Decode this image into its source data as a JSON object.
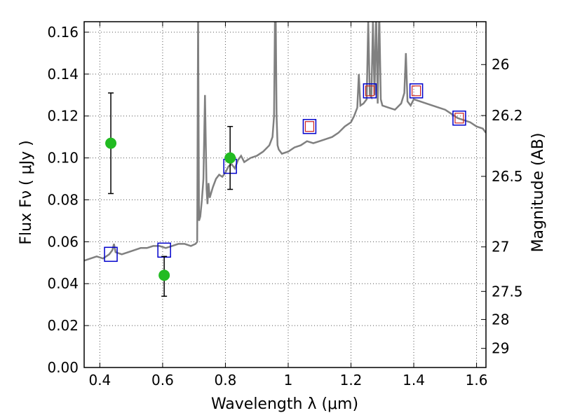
{
  "chart_data": {
    "type": "line",
    "xlabel": "Wavelength  λ (μm)",
    "ylabel": "Flux  Fν  ( μJy )",
    "ylabel_right": "Magnitude (AB)",
    "xlim": [
      0.35,
      1.63
    ],
    "ylim": [
      0.0,
      0.165
    ],
    "grid": true,
    "x_ticks": [
      {
        "v": 0.4,
        "label": "0.4"
      },
      {
        "v": 0.6,
        "label": "0.6"
      },
      {
        "v": 0.8,
        "label": "0.8"
      },
      {
        "v": 1.0,
        "label": "1"
      },
      {
        "v": 1.2,
        "label": "1.2"
      },
      {
        "v": 1.4,
        "label": "1.4"
      },
      {
        "v": 1.6,
        "label": "1.6"
      }
    ],
    "y_ticks": [
      {
        "v": 0.0,
        "label": "0.00"
      },
      {
        "v": 0.02,
        "label": "0.02"
      },
      {
        "v": 0.04,
        "label": "0.04"
      },
      {
        "v": 0.06,
        "label": "0.06"
      },
      {
        "v": 0.08,
        "label": "0.08"
      },
      {
        "v": 0.1,
        "label": "0.10"
      },
      {
        "v": 0.12,
        "label": "0.12"
      },
      {
        "v": 0.14,
        "label": "0.14"
      },
      {
        "v": 0.16,
        "label": "0.16"
      }
    ],
    "right_ticks": [
      {
        "mag": 26,
        "label": "26"
      },
      {
        "mag": 26.2,
        "label": "26.2"
      },
      {
        "mag": 26.5,
        "label": "26.5"
      },
      {
        "mag": 27,
        "label": "27"
      },
      {
        "mag": 27.5,
        "label": "27.5"
      },
      {
        "mag": 28,
        "label": "28"
      },
      {
        "mag": 29,
        "label": "29"
      }
    ],
    "colors": {
      "spectrum": "#808080",
      "model_box": "#0000cc",
      "model_box_inner": "#cc2222",
      "observed": "#22bb22",
      "errorbar": "#000000"
    },
    "spectrum": {
      "x": [
        0.35,
        0.37,
        0.39,
        0.41,
        0.43,
        0.44,
        0.445,
        0.45,
        0.47,
        0.49,
        0.51,
        0.53,
        0.55,
        0.57,
        0.59,
        0.61,
        0.63,
        0.65,
        0.67,
        0.69,
        0.705,
        0.71,
        0.713,
        0.716,
        0.72,
        0.725,
        0.73,
        0.735,
        0.74,
        0.743,
        0.746,
        0.75,
        0.76,
        0.77,
        0.78,
        0.79,
        0.8,
        0.81,
        0.82,
        0.83,
        0.84,
        0.85,
        0.86,
        0.87,
        0.88,
        0.9,
        0.92,
        0.94,
        0.95,
        0.955,
        0.958,
        0.96,
        0.963,
        0.966,
        0.97,
        0.98,
        1.0,
        1.02,
        1.04,
        1.06,
        1.08,
        1.1,
        1.12,
        1.14,
        1.16,
        1.18,
        1.2,
        1.21,
        1.22,
        1.225,
        1.23,
        1.24,
        1.25,
        1.255,
        1.26,
        1.265,
        1.27,
        1.275,
        1.28,
        1.285,
        1.29,
        1.295,
        1.3,
        1.32,
        1.34,
        1.36,
        1.37,
        1.375,
        1.38,
        1.39,
        1.4,
        1.42,
        1.44,
        1.46,
        1.48,
        1.5,
        1.52,
        1.54,
        1.56,
        1.58,
        1.6,
        1.62,
        1.63
      ],
      "y": [
        0.051,
        0.052,
        0.053,
        0.052,
        0.054,
        0.056,
        0.059,
        0.055,
        0.054,
        0.055,
        0.056,
        0.057,
        0.057,
        0.058,
        0.058,
        0.057,
        0.058,
        0.059,
        0.059,
        0.058,
        0.059,
        0.06,
        0.17,
        0.07,
        0.072,
        0.08,
        0.09,
        0.13,
        0.085,
        0.078,
        0.088,
        0.081,
        0.086,
        0.09,
        0.092,
        0.091,
        0.093,
        0.096,
        0.097,
        0.095,
        0.099,
        0.101,
        0.098,
        0.099,
        0.1,
        0.101,
        0.103,
        0.106,
        0.11,
        0.12,
        0.17,
        0.17,
        0.12,
        0.106,
        0.104,
        0.102,
        0.103,
        0.105,
        0.106,
        0.108,
        0.107,
        0.108,
        0.109,
        0.11,
        0.112,
        0.115,
        0.117,
        0.12,
        0.124,
        0.14,
        0.125,
        0.126,
        0.128,
        0.165,
        0.13,
        0.129,
        0.165,
        0.13,
        0.17,
        0.126,
        0.17,
        0.128,
        0.125,
        0.124,
        0.123,
        0.126,
        0.131,
        0.15,
        0.127,
        0.125,
        0.128,
        0.127,
        0.126,
        0.125,
        0.124,
        0.123,
        0.121,
        0.119,
        0.118,
        0.117,
        0.115,
        0.114,
        0.112
      ]
    },
    "model_points": {
      "x": [
        0.435,
        0.605,
        0.815,
        1.068,
        1.26,
        1.408,
        1.545
      ],
      "y": [
        0.054,
        0.056,
        0.096,
        0.115,
        0.132,
        0.132,
        0.119
      ],
      "inner": [
        false,
        false,
        false,
        true,
        true,
        true,
        true
      ]
    },
    "observed_points": [
      {
        "x": 0.435,
        "y": 0.107,
        "ylow": 0.083,
        "yhigh": 0.131
      },
      {
        "x": 0.605,
        "y": 0.044,
        "ylow": 0.034,
        "yhigh": 0.053
      },
      {
        "x": 0.815,
        "y": 0.1,
        "ylow": 0.085,
        "yhigh": 0.115
      }
    ]
  }
}
